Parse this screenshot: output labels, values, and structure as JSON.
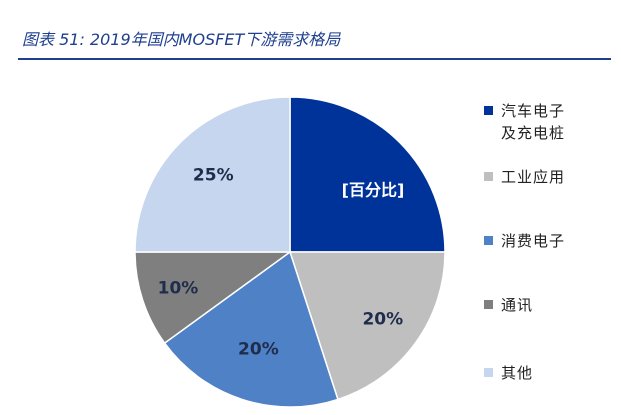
{
  "caption": "图表 51:  2019年国内MOSFET下游需求格局",
  "chart_data": {
    "type": "pie",
    "unit_note": "[百分比]",
    "start_angle_deg": 0,
    "direction": "clockwise",
    "slices": [
      {
        "name": "汽车电子\n及充电桩",
        "value": 25,
        "label": "",
        "color": "#003399"
      },
      {
        "name": "工业应用",
        "value": 20,
        "label": "20%",
        "color": "#bfbfbf"
      },
      {
        "name": "消费电子",
        "value": 20,
        "label": "20%",
        "color": "#4f81c7"
      },
      {
        "name": "通讯",
        "value": 10,
        "label": "10%",
        "color": "#7f7f7f"
      },
      {
        "name": "其他",
        "value": 25,
        "label": "25%",
        "color": "#c6d6ee"
      }
    ],
    "legend_position": "right"
  }
}
